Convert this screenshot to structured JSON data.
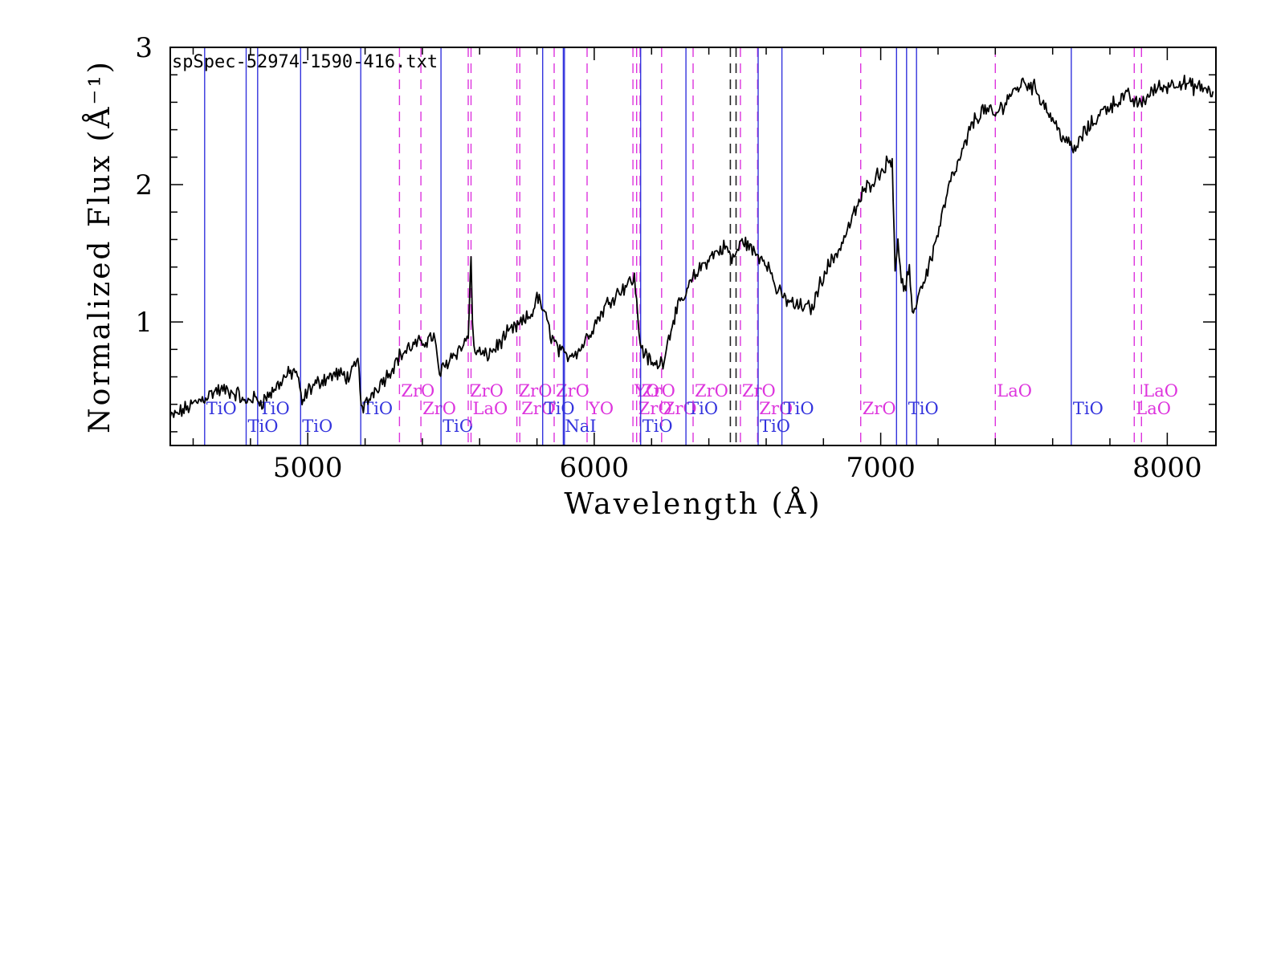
{
  "chart_data": {
    "type": "line",
    "title": "spSpec-52974-1590-416.txt",
    "xlabel": "Wavelength (Å)",
    "ylabel": "Normalized Flux  (Å⁻¹)",
    "xlim": [
      4520,
      8170
    ],
    "ylim": [
      0.1,
      3.0
    ],
    "x_ticks": [
      5000,
      6000,
      7000,
      8000
    ],
    "x_tick_labels": [
      "5000",
      "6000",
      "7000",
      "8000"
    ],
    "y_ticks": [
      1,
      2,
      3
    ],
    "y_tick_labels": [
      "1",
      "2",
      "3"
    ],
    "grid": false,
    "legend": "none",
    "colors": {
      "spectrum": "#000000",
      "tio": "#3333dd",
      "zro": "#dd33dd",
      "dark": "#222222"
    },
    "series": [
      {
        "x": [
          4520,
          4560,
          4600,
          4640,
          4680,
          4720,
          4760,
          4780,
          4800,
          4840,
          4880,
          4920,
          4960,
          4980,
          5000,
          5050,
          5100,
          5150,
          5175,
          5190,
          5230,
          5280,
          5320,
          5360,
          5400,
          5440,
          5460,
          5500,
          5540,
          5560,
          5570,
          5575,
          5580,
          5620,
          5660,
          5700,
          5740,
          5780,
          5800,
          5820,
          5850,
          5880,
          5900,
          5950,
          6000,
          6050,
          6100,
          6140,
          6160,
          6180,
          6210,
          6240,
          6280,
          6320,
          6340,
          6380,
          6420,
          6460,
          6480,
          6500,
          6520,
          6560,
          6600,
          6640,
          6660,
          6700,
          6760,
          6800,
          6860,
          6900,
          6940,
          6980,
          7020,
          7040,
          7050,
          7060,
          7080,
          7100,
          7110,
          7130,
          7160,
          7200,
          7240,
          7280,
          7320,
          7360,
          7400,
          7450,
          7500,
          7540,
          7580,
          7620,
          7660,
          7680,
          7700,
          7740,
          7780,
          7820,
          7860,
          7900,
          7960,
          8000,
          8040,
          8080,
          8120,
          8160
        ],
        "y": [
          0.3,
          0.35,
          0.4,
          0.45,
          0.5,
          0.5,
          0.47,
          0.4,
          0.45,
          0.42,
          0.5,
          0.6,
          0.65,
          0.4,
          0.5,
          0.58,
          0.62,
          0.6,
          0.72,
          0.35,
          0.5,
          0.62,
          0.75,
          0.82,
          0.85,
          0.9,
          0.62,
          0.75,
          0.82,
          0.9,
          1.5,
          0.95,
          0.8,
          0.75,
          0.82,
          0.92,
          0.98,
          1.05,
          1.18,
          1.1,
          0.9,
          0.78,
          0.75,
          0.8,
          0.98,
          1.15,
          1.25,
          1.32,
          0.85,
          0.75,
          0.68,
          0.72,
          1.05,
          1.2,
          1.3,
          1.42,
          1.5,
          1.55,
          1.45,
          1.52,
          1.6,
          1.5,
          1.45,
          1.22,
          1.18,
          1.12,
          1.1,
          1.35,
          1.55,
          1.75,
          1.95,
          2.05,
          2.15,
          2.2,
          1.4,
          1.55,
          1.2,
          1.38,
          1.02,
          1.2,
          1.35,
          1.65,
          2.0,
          2.2,
          2.45,
          2.55,
          2.5,
          2.65,
          2.75,
          2.7,
          2.55,
          2.4,
          2.28,
          2.25,
          2.35,
          2.45,
          2.55,
          2.6,
          2.65,
          2.58,
          2.7,
          2.72,
          2.75,
          2.72,
          2.7,
          2.68
        ]
      }
    ],
    "line_markers": [
      {
        "x": 4640,
        "label": "TiO",
        "color": "tio",
        "style": "solid",
        "row": 2
      },
      {
        "x": 4785,
        "label": "TiO",
        "color": "tio",
        "style": "solid",
        "row": 3
      },
      {
        "x": 4825,
        "label": "TiO",
        "color": "tio",
        "style": "solid",
        "row": 2
      },
      {
        "x": 4975,
        "label": "TiO",
        "color": "tio",
        "style": "solid",
        "row": 3
      },
      {
        "x": 5185,
        "label": "TiO",
        "color": "tio",
        "style": "solid",
        "row": 2
      },
      {
        "x": 5320,
        "label": "ZrO",
        "color": "zro",
        "style": "dashed",
        "row": 1
      },
      {
        "x": 5395,
        "label": "ZrO",
        "color": "zro",
        "style": "dashed",
        "row": 2
      },
      {
        "x": 5465,
        "label": "TiO",
        "color": "tio",
        "style": "solid",
        "row": 3
      },
      {
        "x": 5560,
        "label": "ZrO",
        "color": "zro",
        "style": "dashed",
        "row": 1
      },
      {
        "x": 5570,
        "label": "LaO",
        "color": "zro",
        "style": "dashed",
        "row": 2
      },
      {
        "x": 5730,
        "label": "ZrO",
        "color": "zro",
        "style": "dashed",
        "row": 1
      },
      {
        "x": 5740,
        "label": "ZrO",
        "color": "zro",
        "style": "dashed",
        "row": 2
      },
      {
        "x": 5820,
        "label": "TiO",
        "color": "tio",
        "style": "solid",
        "row": 2
      },
      {
        "x": 5860,
        "label": "ZrO",
        "color": "zro",
        "style": "dashed",
        "row": 1
      },
      {
        "x": 5892,
        "label": "NaI",
        "color": "tio",
        "style": "solid",
        "row": 3
      },
      {
        "x": 5896,
        "label": "",
        "color": "tio",
        "style": "solid",
        "row": 0
      },
      {
        "x": 5975,
        "label": "YO",
        "color": "zro",
        "style": "dashed",
        "row": 2
      },
      {
        "x": 6135,
        "label": "YO",
        "color": "zro",
        "style": "dashed",
        "row": 1
      },
      {
        "x": 6148,
        "label": "ZrO",
        "color": "zro",
        "style": "dashed",
        "row": 2
      },
      {
        "x": 6160,
        "label": "ZrO",
        "color": "zro",
        "style": "dashed",
        "row": 1
      },
      {
        "x": 6162,
        "label": "TiO",
        "color": "tio",
        "style": "solid",
        "row": 3
      },
      {
        "x": 6235,
        "label": "ZrO",
        "color": "zro",
        "style": "dashed",
        "row": 2
      },
      {
        "x": 6320,
        "label": "TiO",
        "color": "tio",
        "style": "solid",
        "row": 2
      },
      {
        "x": 6345,
        "label": "ZrO",
        "color": "zro",
        "style": "dashed",
        "row": 1
      },
      {
        "x": 6475,
        "label": "",
        "color": "dark",
        "style": "dashed",
        "row": 0
      },
      {
        "x": 6495,
        "label": "",
        "color": "dark",
        "style": "dashed",
        "row": 0
      },
      {
        "x": 6510,
        "label": "ZrO",
        "color": "zro",
        "style": "dashed",
        "row": 1
      },
      {
        "x": 6570,
        "label": "ZrO",
        "color": "zro",
        "style": "dashed",
        "row": 2
      },
      {
        "x": 6572,
        "label": "TiO",
        "color": "tio",
        "style": "solid",
        "row": 3
      },
      {
        "x": 6655,
        "label": "TiO",
        "color": "tio",
        "style": "solid",
        "row": 2
      },
      {
        "x": 6930,
        "label": "ZrO",
        "color": "zro",
        "style": "dashed",
        "row": 2
      },
      {
        "x": 7055,
        "label": "",
        "color": "tio",
        "style": "solid",
        "row": 0
      },
      {
        "x": 7090,
        "label": "TiO",
        "color": "tio",
        "style": "solid",
        "row": 2
      },
      {
        "x": 7125,
        "label": "",
        "color": "tio",
        "style": "solid",
        "row": 0
      },
      {
        "x": 7400,
        "label": "LaO",
        "color": "zro",
        "style": "dashed",
        "row": 1
      },
      {
        "x": 7665,
        "label": "TiO",
        "color": "tio",
        "style": "solid",
        "row": 2
      },
      {
        "x": 7885,
        "label": "LaO",
        "color": "zro",
        "style": "dashed",
        "row": 2
      },
      {
        "x": 7910,
        "label": "LaO",
        "color": "zro",
        "style": "dashed",
        "row": 1
      }
    ]
  }
}
